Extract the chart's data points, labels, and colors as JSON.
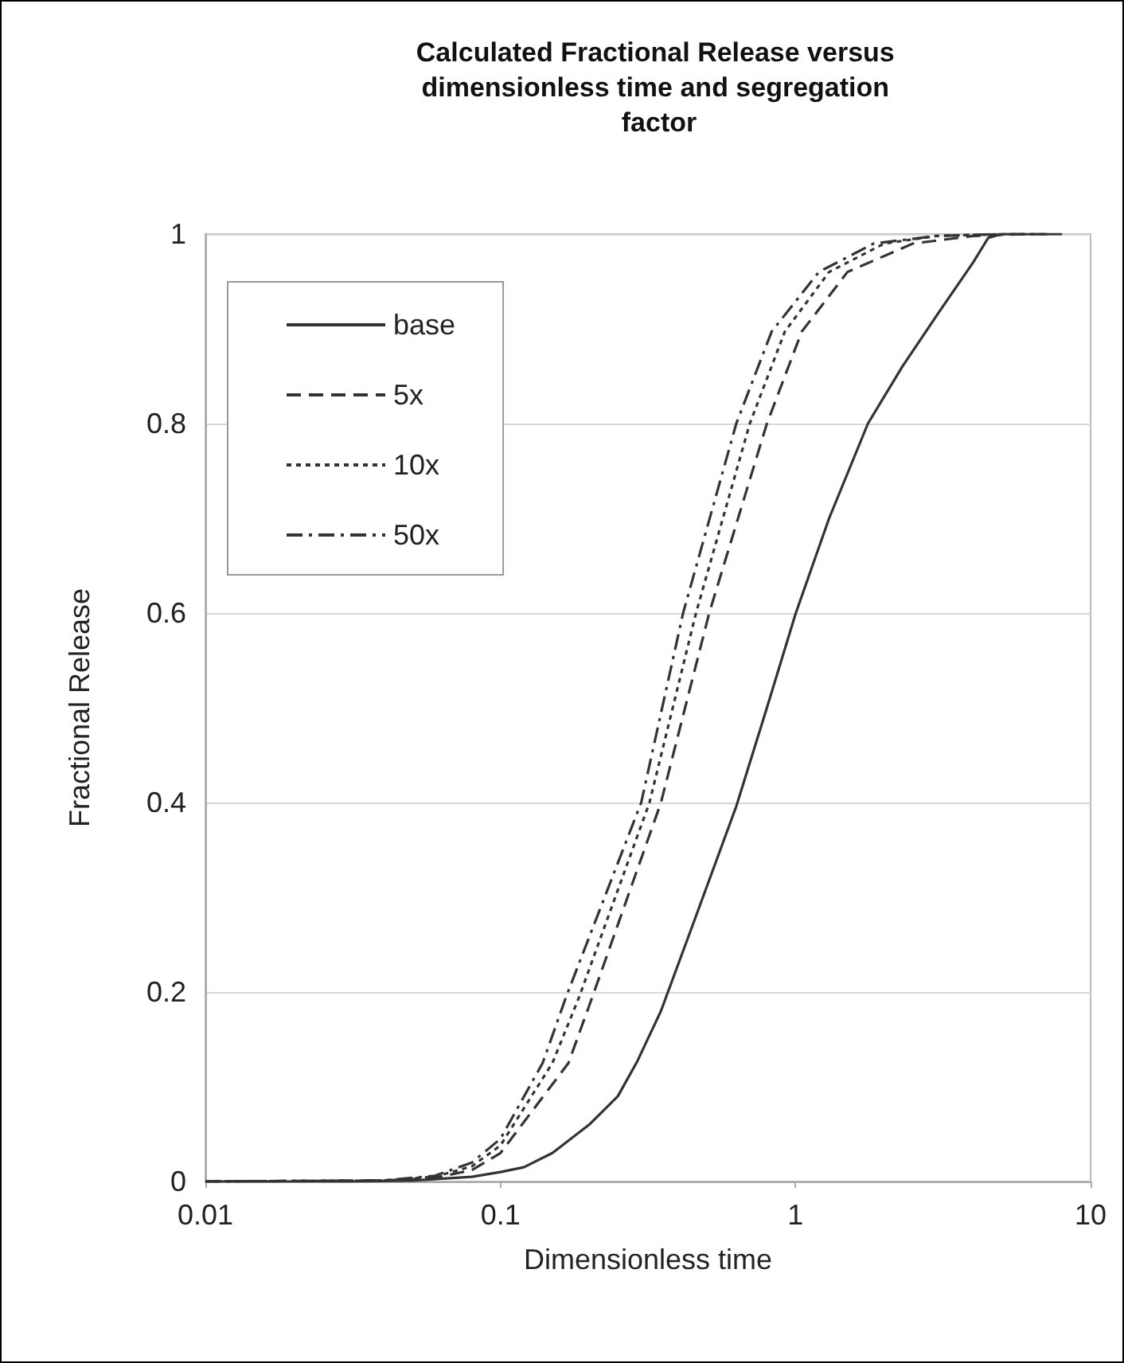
{
  "chart_data": {
    "type": "line",
    "title": "Calculated Fractional Release versus dimensionless time and segregation factor",
    "xlabel": "Dimensionless time",
    "ylabel": "Fractional Release",
    "log": "x",
    "xlim": [
      0.01,
      10
    ],
    "xticks": [
      0.01,
      0.1,
      1,
      10
    ],
    "ylim": [
      0,
      1
    ],
    "yticks": [
      0,
      0.2,
      0.4,
      0.6,
      0.8,
      1
    ],
    "grid": "y",
    "legend": "top left",
    "marker": "none",
    "series": [
      {
        "name": "base",
        "color": "#333333",
        "line_style": "solid",
        "x": [
          0.01,
          0.03,
          0.05,
          0.08,
          0.1,
          0.12,
          0.15,
          0.2,
          0.25,
          0.29,
          0.35,
          0.45,
          0.63,
          0.8,
          1,
          1.3,
          1.76,
          2.3,
          3.04,
          4,
          4.5,
          5,
          8
        ],
        "values": [
          0,
          0,
          0.001,
          0.005,
          0.01,
          0.015,
          0.03,
          0.06,
          0.09,
          0.126,
          0.18,
          0.272,
          0.396,
          0.5,
          0.599,
          0.7,
          0.8,
          0.86,
          0.916,
          0.97,
          0.996,
          1,
          1
        ]
      },
      {
        "name": "5x",
        "color": "#333333",
        "line_style": "dashed",
        "x": [
          0.01,
          0.04,
          0.06,
          0.08,
          0.1,
          0.17,
          0.205,
          0.35,
          0.51,
          0.8,
          1.05,
          1.5,
          2.5,
          4,
          6,
          7.5
        ],
        "values": [
          0,
          0.001,
          0.004,
          0.012,
          0.03,
          0.125,
          0.195,
          0.4,
          0.6,
          0.8,
          0.897,
          0.96,
          0.99,
          0.998,
          1,
          1
        ]
      },
      {
        "name": "10x",
        "color": "#333333",
        "line_style": "dotted",
        "x": [
          0.01,
          0.04,
          0.06,
          0.08,
          0.1,
          0.15,
          0.185,
          0.32,
          0.46,
          0.7,
          0.92,
          1.3,
          2,
          3,
          5,
          7
        ],
        "values": [
          0,
          0.001,
          0.005,
          0.016,
          0.038,
          0.125,
          0.195,
          0.4,
          0.6,
          0.8,
          0.897,
          0.96,
          0.99,
          0.998,
          1,
          1
        ]
      },
      {
        "name": "50x",
        "color": "#333333",
        "line_style": "dashdot",
        "x": [
          0.01,
          0.04,
          0.06,
          0.08,
          0.1,
          0.139,
          0.167,
          0.3,
          0.416,
          0.63,
          0.83,
          1.2,
          1.84,
          3,
          5,
          6.5
        ],
        "values": [
          0,
          0.001,
          0.006,
          0.02,
          0.045,
          0.125,
          0.195,
          0.4,
          0.6,
          0.8,
          0.897,
          0.96,
          0.99,
          0.998,
          1,
          1
        ]
      }
    ]
  }
}
